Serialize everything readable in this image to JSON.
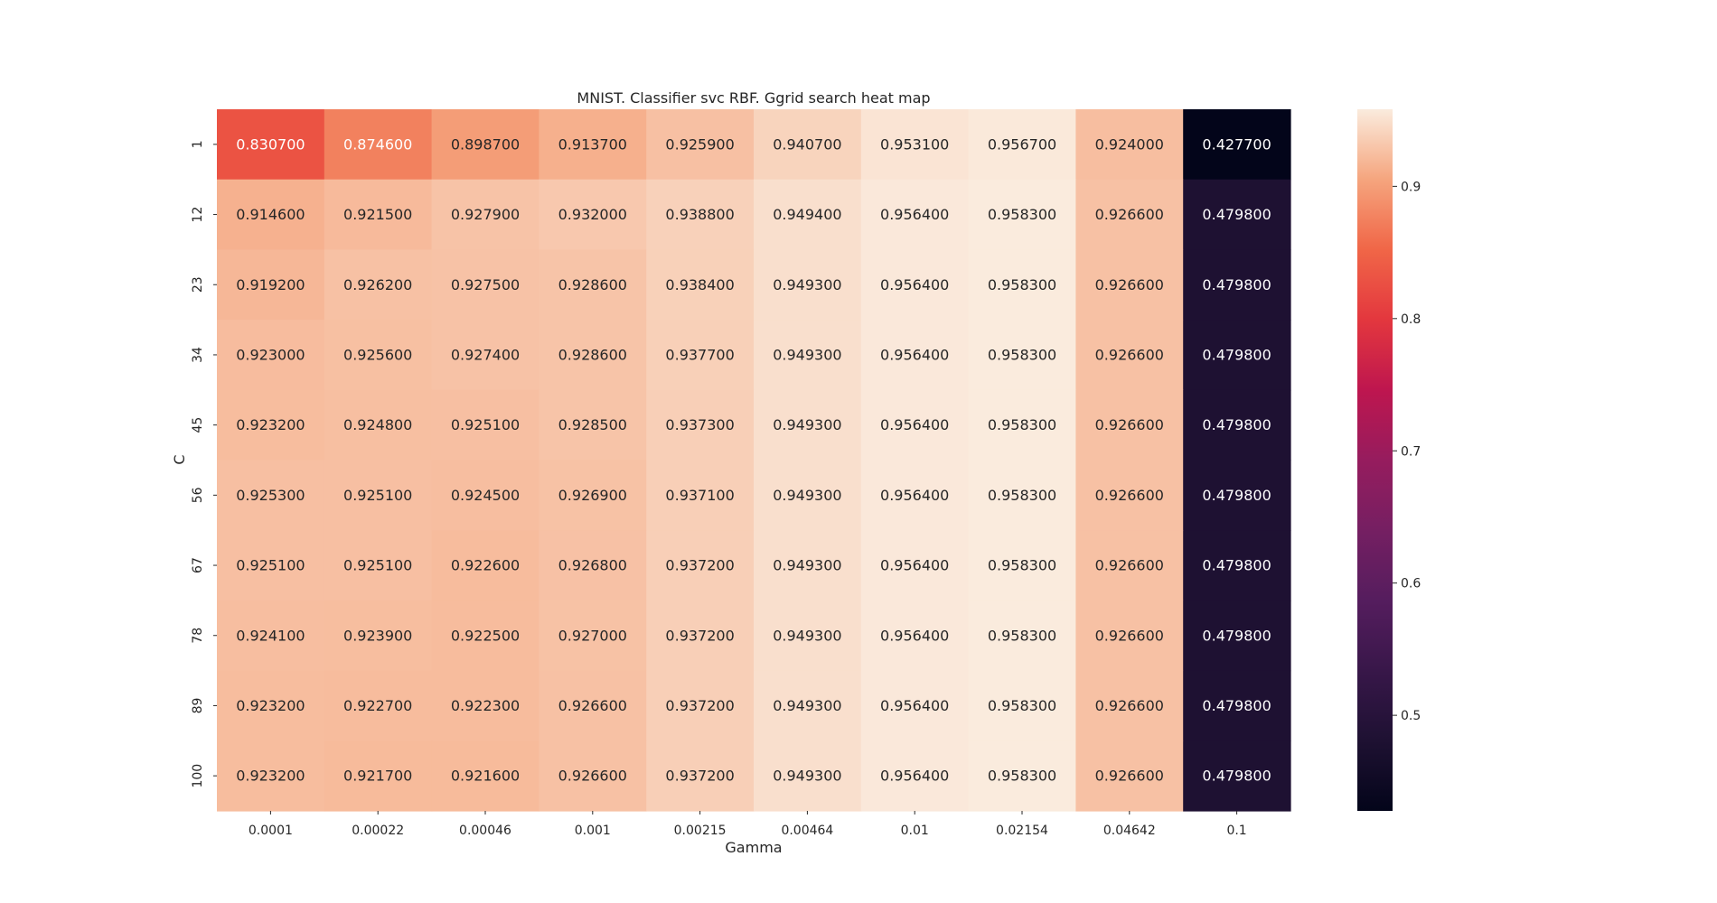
{
  "chart_data": {
    "type": "heatmap",
    "title": "MNIST. Classifier svc RBF. Ggrid search heat map",
    "xlabel": "Gamma",
    "ylabel": "C",
    "x": [
      "0.0001",
      "0.00022",
      "0.00046",
      "0.001",
      "0.00215",
      "0.00464",
      "0.01",
      "0.02154",
      "0.04642",
      "0.1"
    ],
    "y": [
      "1",
      "12",
      "23",
      "34",
      "45",
      "56",
      "67",
      "78",
      "89",
      "100"
    ],
    "values": [
      [
        0.8307,
        0.8746,
        0.8987,
        0.9137,
        0.9259,
        0.9407,
        0.9531,
        0.9567,
        0.924,
        0.4277
      ],
      [
        0.9146,
        0.9215,
        0.9279,
        0.932,
        0.9388,
        0.9494,
        0.9564,
        0.9583,
        0.9266,
        0.4798
      ],
      [
        0.9192,
        0.9262,
        0.9275,
        0.9286,
        0.9384,
        0.9493,
        0.9564,
        0.9583,
        0.9266,
        0.4798
      ],
      [
        0.923,
        0.9256,
        0.9274,
        0.9286,
        0.9377,
        0.9493,
        0.9564,
        0.9583,
        0.9266,
        0.4798
      ],
      [
        0.9232,
        0.9248,
        0.9251,
        0.9285,
        0.9373,
        0.9493,
        0.9564,
        0.9583,
        0.9266,
        0.4798
      ],
      [
        0.9253,
        0.9251,
        0.9245,
        0.9269,
        0.9371,
        0.9493,
        0.9564,
        0.9583,
        0.9266,
        0.4798
      ],
      [
        0.9251,
        0.9251,
        0.9226,
        0.9268,
        0.9372,
        0.9493,
        0.9564,
        0.9583,
        0.9266,
        0.4798
      ],
      [
        0.9241,
        0.9239,
        0.9225,
        0.927,
        0.9372,
        0.9493,
        0.9564,
        0.9583,
        0.9266,
        0.4798
      ],
      [
        0.9232,
        0.9227,
        0.9223,
        0.9266,
        0.9372,
        0.9493,
        0.9564,
        0.9583,
        0.9266,
        0.4798
      ],
      [
        0.9232,
        0.9217,
        0.9216,
        0.9266,
        0.9372,
        0.9493,
        0.9564,
        0.9583,
        0.9266,
        0.4798
      ]
    ],
    "value_format": "%f",
    "colormap": "rocket",
    "vmin": 0.4277,
    "vmax": 0.9583,
    "colorbar": {
      "ticks": [
        0.5,
        0.6,
        0.7,
        0.8,
        0.9
      ],
      "tick_labels": [
        "0.5",
        "0.6",
        "0.7",
        "0.8",
        "0.9"
      ]
    },
    "grid": false,
    "legend": "colorbar-right"
  }
}
